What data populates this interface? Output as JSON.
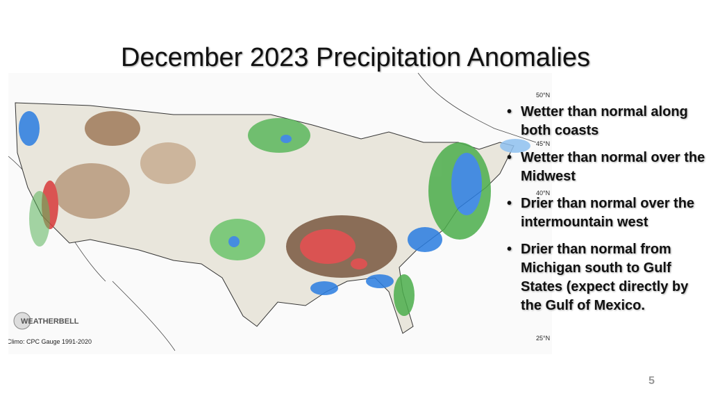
{
  "title": "December 2023 Precipitation Anomalies",
  "bullets": [
    "Wetter than normal along both coasts",
    "Wetter than normal over the Midwest",
    "Drier than normal over the intermountain west",
    "Drier than normal from Michigan south to Gulf States (expect directly by the Gulf of Mexico."
  ],
  "map": {
    "latitude_labels": [
      "50°N",
      "45°N",
      "40°N",
      "25°N"
    ],
    "credit": "Climo: CPC Gauge 1991-2020",
    "logo": "WEATHERBELL"
  },
  "page_number": "5"
}
